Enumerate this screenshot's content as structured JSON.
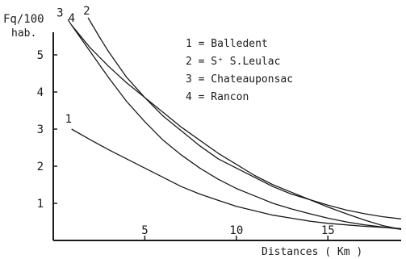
{
  "chart_data": {
    "type": "line",
    "ylabel": "Fq/100",
    "ylabel_unit": "hab.",
    "xlabel": "Distances ( Km )",
    "xlim": [
      0,
      19
    ],
    "ylim": [
      0,
      6
    ],
    "grid": false,
    "legend_placement": "top-right",
    "x_ticks": [
      5,
      10,
      15
    ],
    "y_ticks": [
      1,
      2,
      3,
      4,
      5
    ],
    "legend": [
      {
        "key": "1",
        "text": "1 = Balledent"
      },
      {
        "key": "2",
        "text": "2 = S⁺ S.Leulac"
      },
      {
        "key": "3",
        "text": "3 = Chateauponsac"
      },
      {
        "key": "4",
        "text": "4 = Rancon"
      }
    ],
    "series": [
      {
        "name": "1",
        "x": [
          1,
          2,
          3,
          4,
          5,
          6,
          7,
          8,
          9,
          10,
          11,
          12,
          13,
          14,
          15,
          16,
          17,
          18,
          19
        ],
        "values": [
          3.0,
          2.72,
          2.45,
          2.2,
          1.95,
          1.7,
          1.45,
          1.25,
          1.08,
          0.92,
          0.8,
          0.68,
          0.6,
          0.52,
          0.46,
          0.42,
          0.38,
          0.35,
          0.32
        ]
      },
      {
        "name": "2",
        "x": [
          1.9,
          2.5,
          3,
          4,
          5,
          6,
          7,
          8,
          9,
          10,
          11,
          12,
          13,
          14,
          15,
          16,
          17,
          18,
          19
        ],
        "values": [
          6.0,
          5.5,
          5.1,
          4.4,
          3.85,
          3.35,
          2.95,
          2.55,
          2.2,
          1.95,
          1.7,
          1.45,
          1.25,
          1.1,
          0.95,
          0.82,
          0.72,
          0.64,
          0.58
        ]
      },
      {
        "name": "3",
        "x": [
          0.8,
          1,
          2,
          3,
          4,
          5,
          6,
          7,
          8,
          9,
          10,
          11,
          12,
          13,
          14,
          15,
          16,
          17,
          18,
          19
        ],
        "values": [
          5.95,
          5.8,
          5.2,
          4.7,
          4.25,
          3.85,
          3.45,
          3.05,
          2.7,
          2.35,
          2.05,
          1.75,
          1.5,
          1.3,
          1.1,
          0.9,
          0.72,
          0.55,
          0.4,
          0.3
        ]
      },
      {
        "name": "4",
        "x": [
          1,
          2,
          3,
          4,
          5,
          6,
          7,
          8,
          9,
          10,
          11,
          12,
          13,
          14,
          15,
          16,
          17,
          18,
          19
        ],
        "values": [
          5.8,
          5.1,
          4.4,
          3.75,
          3.2,
          2.7,
          2.3,
          1.95,
          1.65,
          1.4,
          1.2,
          1.0,
          0.85,
          0.72,
          0.6,
          0.5,
          0.42,
          0.36,
          0.3
        ]
      }
    ]
  }
}
